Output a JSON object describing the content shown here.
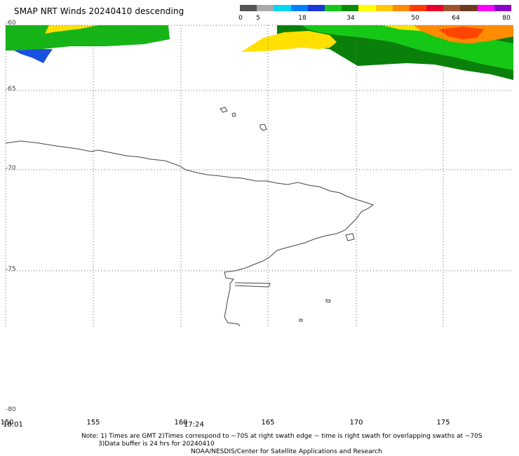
{
  "title": "SMAP NRT Winds  20240410 descending",
  "colorbar": {
    "labels": [
      "0",
      "5",
      "18",
      "34",
      "50",
      "64",
      "80"
    ],
    "segments": [
      {
        "color": "#555555"
      },
      {
        "color": "#aaaaaa"
      },
      {
        "color": "#00d8f0"
      },
      {
        "color": "#0080ff"
      },
      {
        "color": "#1a36d6"
      },
      {
        "color": "#16c816"
      },
      {
        "color": "#0a8c0a"
      },
      {
        "color": "#ffff00"
      },
      {
        "color": "#ffc800"
      },
      {
        "color": "#ff8c00"
      },
      {
        "color": "#ff3c00"
      },
      {
        "color": "#e8002a"
      },
      {
        "color": "#a0522d"
      },
      {
        "color": "#6b3a1f"
      },
      {
        "color": "#ff00ff"
      },
      {
        "color": "#8c00c8"
      }
    ]
  },
  "map": {
    "lat_labels": [
      "-60",
      "-65",
      "-70",
      "-75",
      "-80"
    ],
    "lon_labels": [
      "150",
      "155",
      "160",
      "165",
      "170",
      "175"
    ],
    "time_labels": [
      "18:01",
      "17:24"
    ]
  },
  "footer": {
    "note_line1": "Note: 1) Times are GMT 2)Times correspond to ~70S at right swath edge ~ time is right swath for overlapping swaths at ~70S",
    "note_line2": "3)Data buffer is 24 hrs for 20240410",
    "credit": "NOAA/NESDIS/Center for Satellite Applications and Research"
  },
  "colors": {
    "grid": "#666666",
    "coast": "#444444",
    "wind_green": "#16b416",
    "wind_dark_green": "#0a800a",
    "wind_yellow": "#ffe000",
    "wind_orange": "#ff8c00",
    "wind_red": "#ff4400",
    "wind_blue": "#1a50e0"
  }
}
